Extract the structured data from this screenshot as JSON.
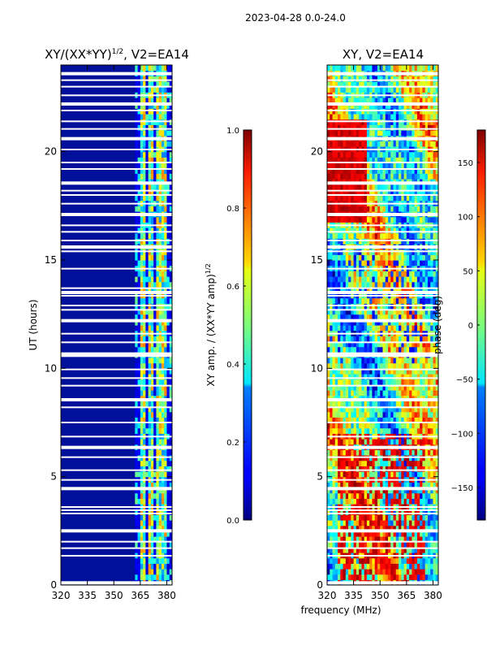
{
  "chart_data": [
    {
      "type": "heatmap",
      "suptitle": "2023-04-28 0.0-24.0",
      "title": "XY/(XX*YY)",
      "title_sup": "1/2",
      "title_suffix": ", V2=EA14",
      "xlabel": "",
      "ylabel": "UT (hours)",
      "xlim": [
        320,
        383
      ],
      "ylim": [
        0,
        24
      ],
      "x_ticks": [
        320,
        335,
        350,
        365,
        380
      ],
      "y_ticks": [
        0,
        5,
        10,
        15,
        20
      ],
      "colorbar": {
        "label": "XY amp. / (XX*YY amp)",
        "label_sup": "1/2",
        "range": [
          0.0,
          1.0
        ],
        "ticks": [
          "0.0",
          "0.2",
          "0.4",
          "0.6",
          "0.8",
          "1.0"
        ]
      },
      "bright_channel_bands_mhz": [
        [
          364,
          367
        ],
        [
          369,
          372
        ],
        [
          373,
          376
        ],
        [
          377,
          380
        ]
      ],
      "background_level": 0.1,
      "band_level": 0.5
    },
    {
      "type": "heatmap",
      "title": "XY, V2=EA14",
      "xlabel": "frequency (MHz)",
      "ylabel": "",
      "xlim": [
        320,
        383
      ],
      "ylim": [
        0,
        24
      ],
      "x_ticks": [
        320,
        335,
        350,
        365,
        380
      ],
      "y_ticks": [
        0,
        5,
        10,
        15,
        20
      ],
      "colorbar": {
        "label": "phase (deg)",
        "range": [
          -180,
          180
        ],
        "ticks": [
          "−150",
          "−100",
          "−50",
          "0",
          "50",
          "100",
          "150"
        ]
      }
    }
  ],
  "flagged_gaps_ut_hours": [
    0.1,
    1.35,
    1.7,
    2.0,
    2.5,
    3.3,
    3.45,
    3.6,
    4.45,
    4.85,
    5.3,
    5.9,
    6.35,
    6.85,
    7.5,
    8.2,
    8.55,
    9.2,
    9.55,
    9.95,
    10.6,
    10.7,
    11.2,
    11.6,
    12.2,
    12.7,
    12.9,
    13.35,
    13.5,
    13.7,
    14.6,
    15.4,
    15.6,
    15.9,
    16.3,
    16.6,
    17.1,
    17.6,
    18.0,
    18.2,
    18.55,
    19.2,
    19.5,
    20.1,
    20.6,
    21.05,
    21.4,
    21.9,
    22.2,
    22.6,
    23.0,
    23.3,
    23.6
  ]
}
